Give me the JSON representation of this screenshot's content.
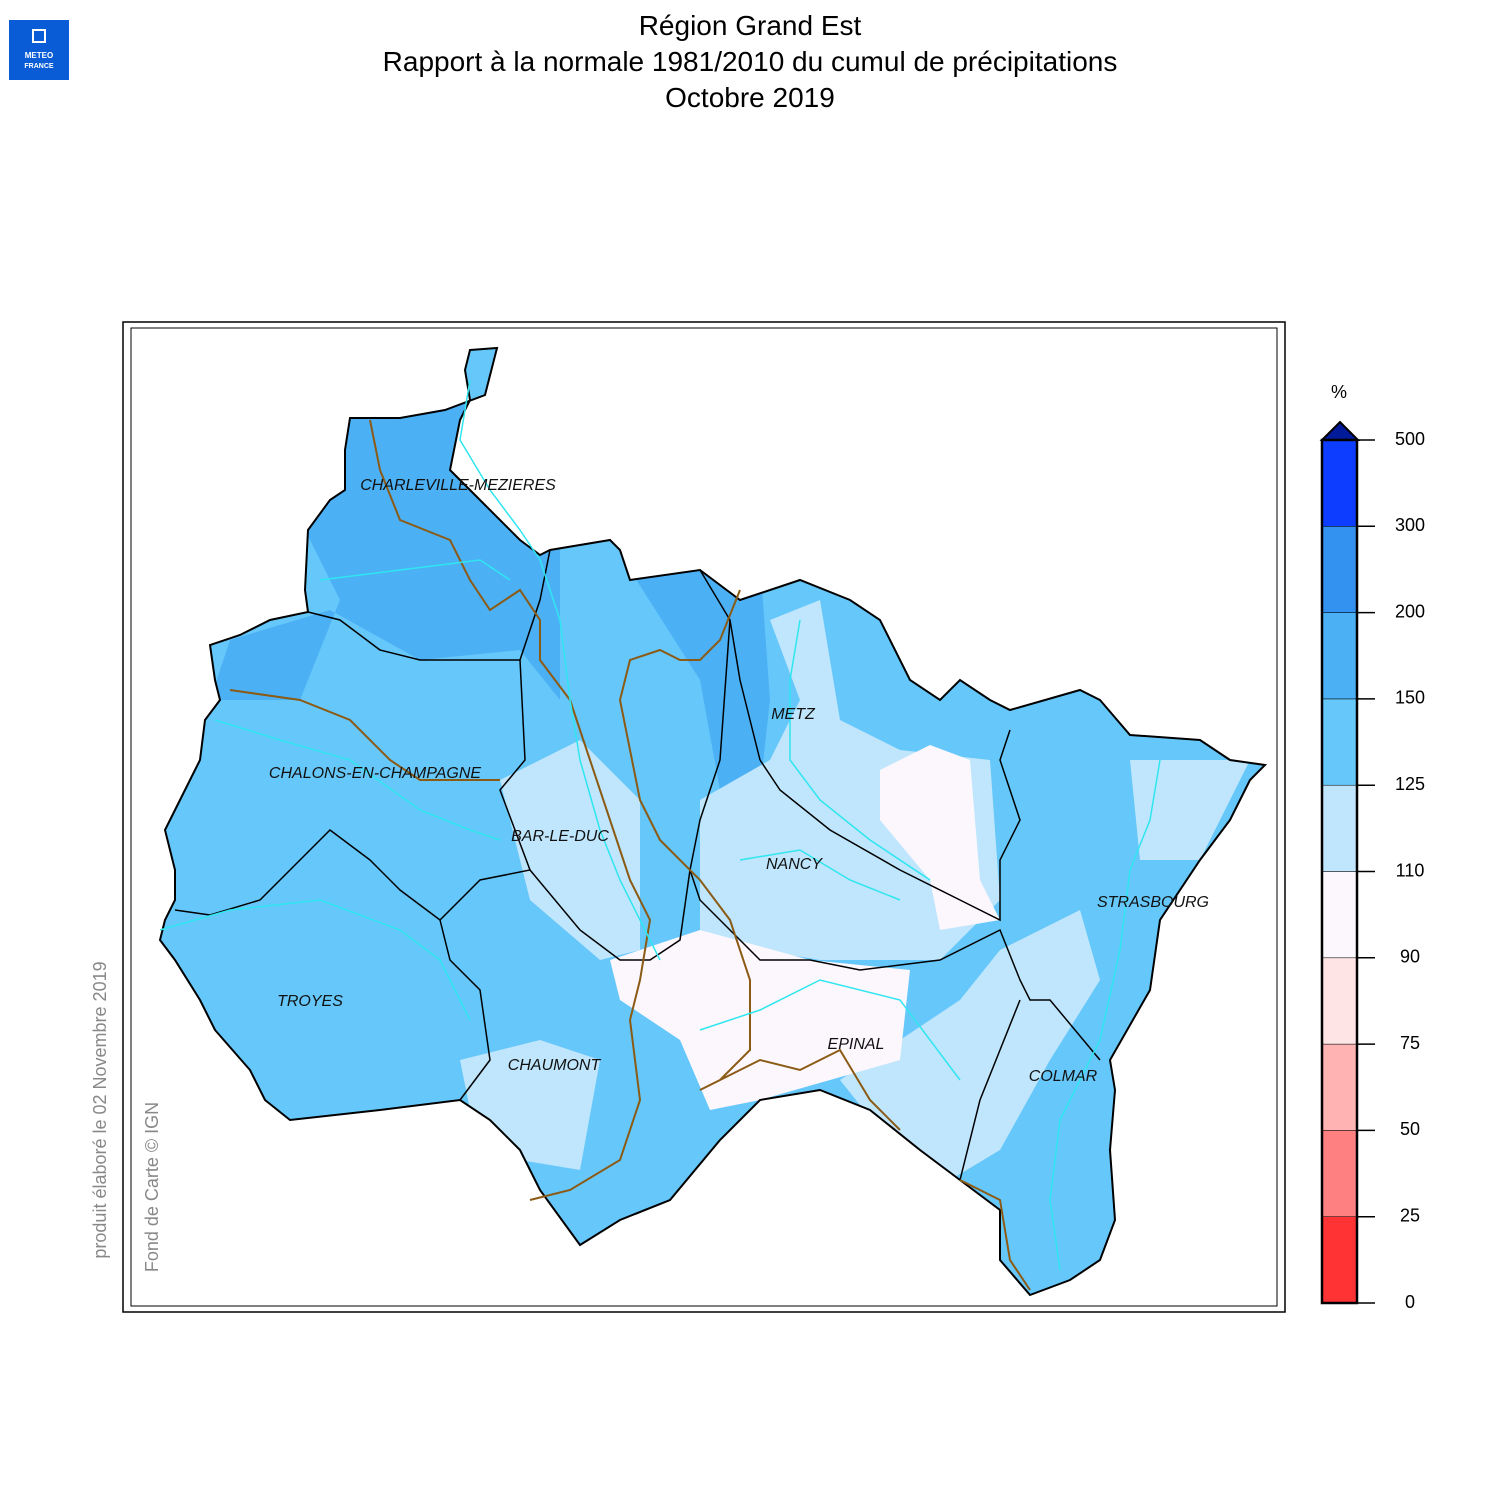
{
  "logo": {
    "line1": "METEO",
    "line2": "FRANCE"
  },
  "header": {
    "title": "Région Grand Est",
    "subtitle": "Rapport à la normale 1981/2010 du cumul de précipitations",
    "period": "Octobre 2019"
  },
  "map": {
    "cities": [
      {
        "label": "CHARLEVILLE-MEZIERES"
      },
      {
        "label": "METZ"
      },
      {
        "label": "CHALONS-EN-CHAMPAGNE"
      },
      {
        "label": "BAR-LE-DUC"
      },
      {
        "label": "NANCY"
      },
      {
        "label": "STRASBOURG"
      },
      {
        "label": "TROYES"
      },
      {
        "label": "EPINAL"
      },
      {
        "label": "CHAUMONT"
      },
      {
        "label": "COLMAR"
      }
    ]
  },
  "legend": {
    "unit": "%",
    "ticks": [
      0,
      25,
      50,
      75,
      90,
      110,
      125,
      150,
      200,
      300,
      500
    ],
    "colors": [
      "#ff3333",
      "#ff8080",
      "#ffb3b3",
      "#ffe4e6",
      "#fcf7fd",
      "#bfe6fc",
      "#66c7fa",
      "#4cb0f5",
      "#3391f0",
      "#0d3dff"
    ]
  },
  "credits": {
    "produced": "produit élaboré le 02 Novembre 2019",
    "basemap": "Fond de Carte © IGN"
  }
}
